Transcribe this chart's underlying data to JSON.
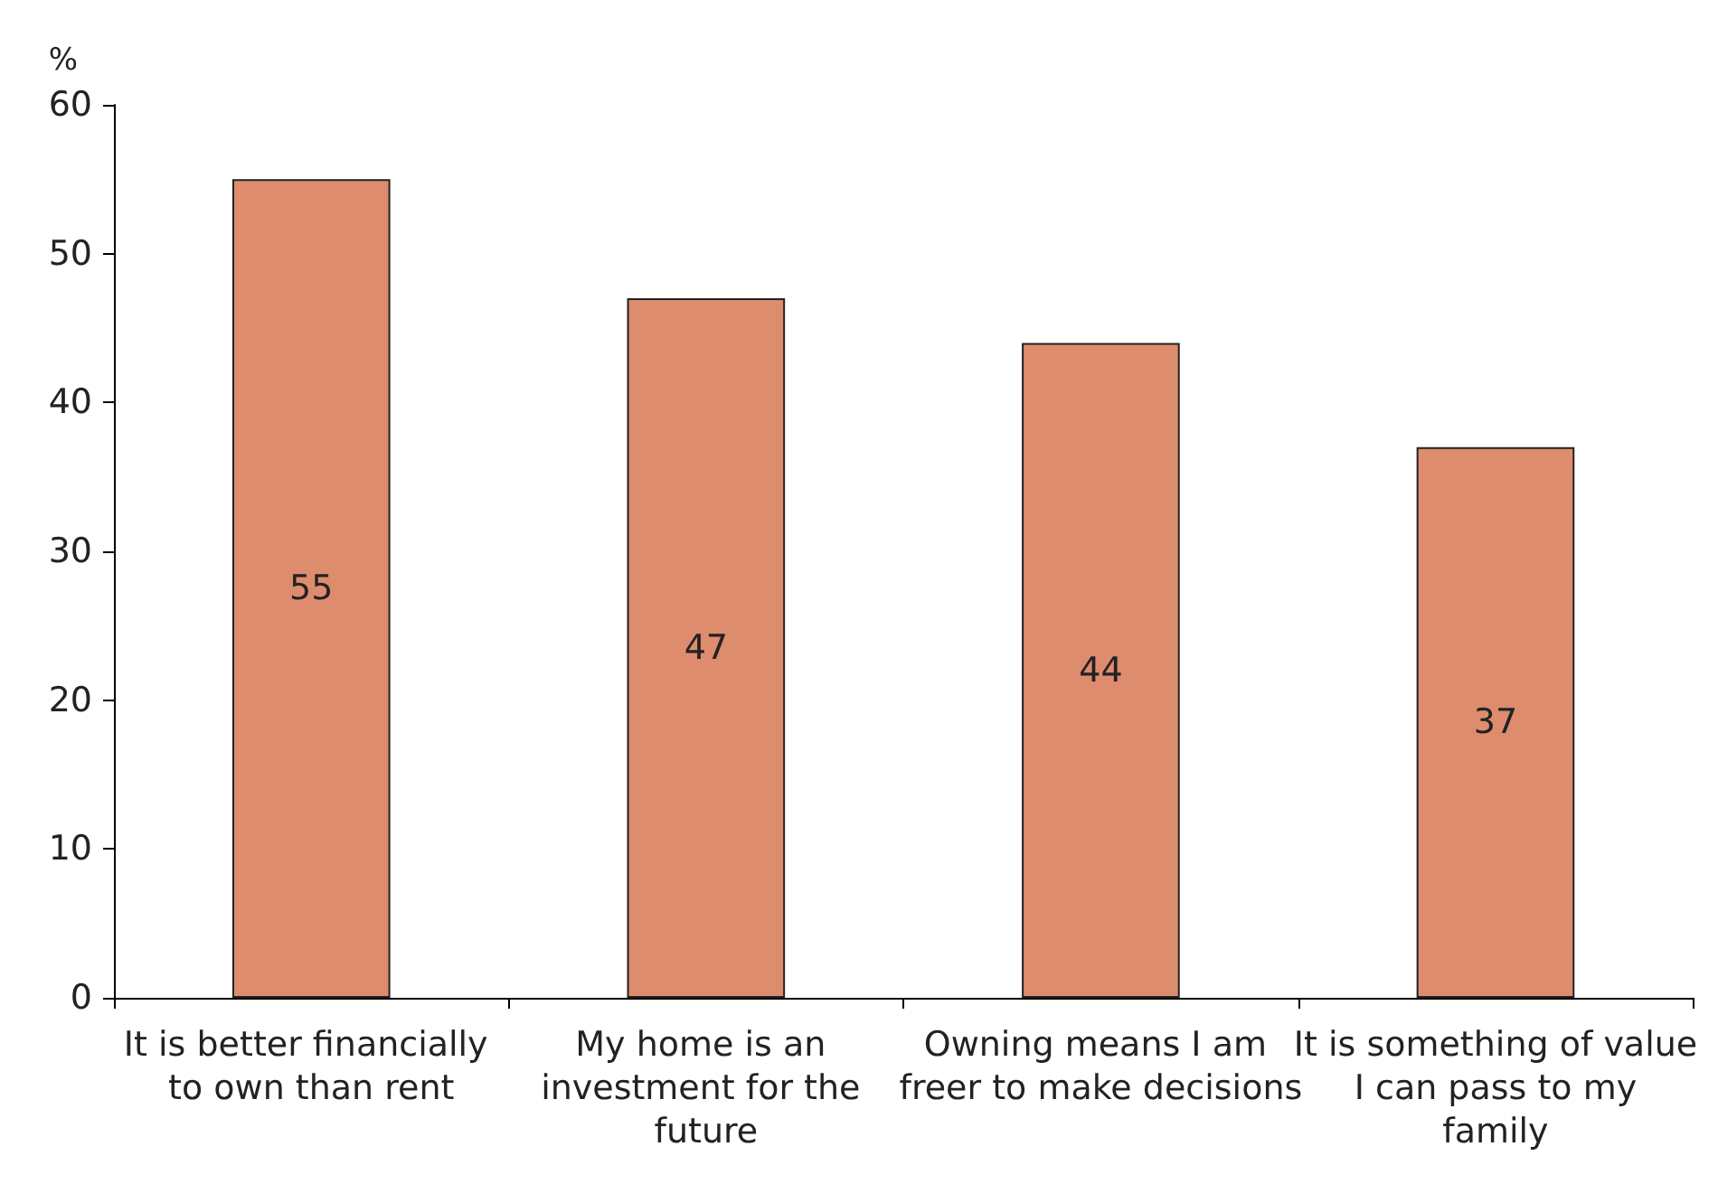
{
  "chart_data": {
    "type": "bar",
    "ylabel": "%",
    "categories": [
      "It is better financially to own than rent",
      "My home is an investment for the future",
      "Owning means I am freer to make decisions",
      "It is something of value I can pass to my family"
    ],
    "values": [
      55,
      47,
      44,
      37
    ],
    "color": "#de8c6e",
    "data_labels": true,
    "grid": false,
    "ylim": [
      0,
      60
    ],
    "yticks": [
      0,
      10,
      20,
      30,
      40,
      50,
      60
    ]
  }
}
